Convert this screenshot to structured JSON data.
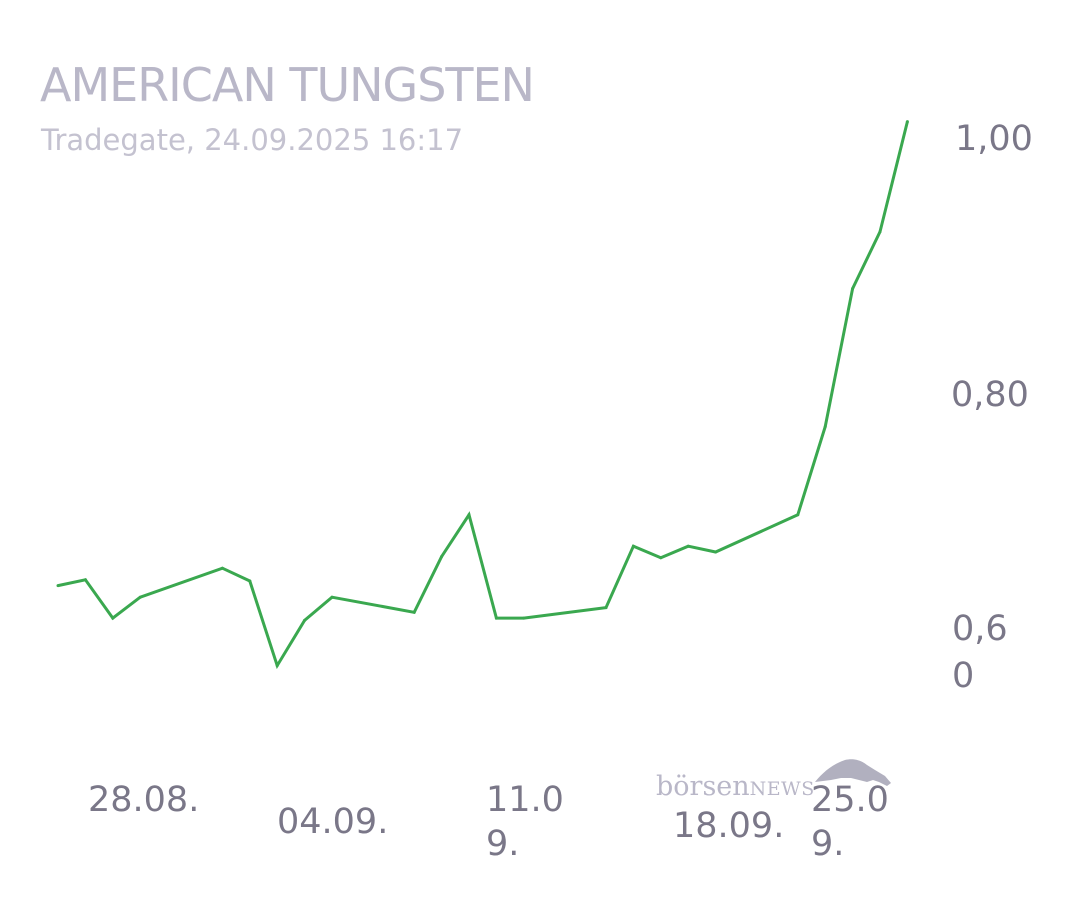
{
  "chart_data": {
    "type": "line",
    "title": "AMERICAN TUNGSTEN",
    "subtitle": "Tradegate, 24.09.2025 16:17",
    "xlabel": "",
    "ylabel": "",
    "series": [
      {
        "color": "#3aa84f",
        "points": [
          {
            "x": "2025-08-26",
            "y": 0.64
          },
          {
            "x": "2025-08-27",
            "y": 0.645
          },
          {
            "x": "2025-08-28",
            "y": 0.612
          },
          {
            "x": "2025-08-29",
            "y": 0.63
          },
          {
            "x": "2025-09-01",
            "y": 0.655
          },
          {
            "x": "2025-09-02",
            "y": 0.644
          },
          {
            "x": "2025-09-03",
            "y": 0.571
          },
          {
            "x": "2025-09-04",
            "y": 0.61
          },
          {
            "x": "2025-09-05",
            "y": 0.63
          },
          {
            "x": "2025-09-08",
            "y": 0.617
          },
          {
            "x": "2025-09-09",
            "y": 0.665
          },
          {
            "x": "2025-09-10",
            "y": 0.701
          },
          {
            "x": "2025-09-11",
            "y": 0.612
          },
          {
            "x": "2025-09-12",
            "y": 0.612
          },
          {
            "x": "2025-09-15",
            "y": 0.621
          },
          {
            "x": "2025-09-16",
            "y": 0.674
          },
          {
            "x": "2025-09-17",
            "y": 0.664
          },
          {
            "x": "2025-09-18",
            "y": 0.674
          },
          {
            "x": "2025-09-19",
            "y": 0.669
          },
          {
            "x": "2025-09-22",
            "y": 0.701
          },
          {
            "x": "2025-09-23",
            "y": 0.777
          },
          {
            "x": "2025-09-24",
            "y": 0.896
          },
          {
            "x": "2025-09-25",
            "y": 0.945
          },
          {
            "x": "2025-09-26",
            "y": 1.04
          }
        ]
      }
    ],
    "x_ticks": [
      "28.08.",
      "04.09.",
      "11.09.",
      "18.09.",
      "25.09."
    ],
    "y_ticks": [
      {
        "value": 0.6,
        "label": "0,60"
      },
      {
        "value": 0.8,
        "label": "0,80"
      },
      {
        "value": 1.0,
        "label": "1,00"
      }
    ],
    "ylim": [
      0.5,
      1.06
    ],
    "grid": false,
    "legend": "none"
  },
  "watermark": {
    "text_lower": "börsen",
    "text_caps": "NEWS"
  }
}
